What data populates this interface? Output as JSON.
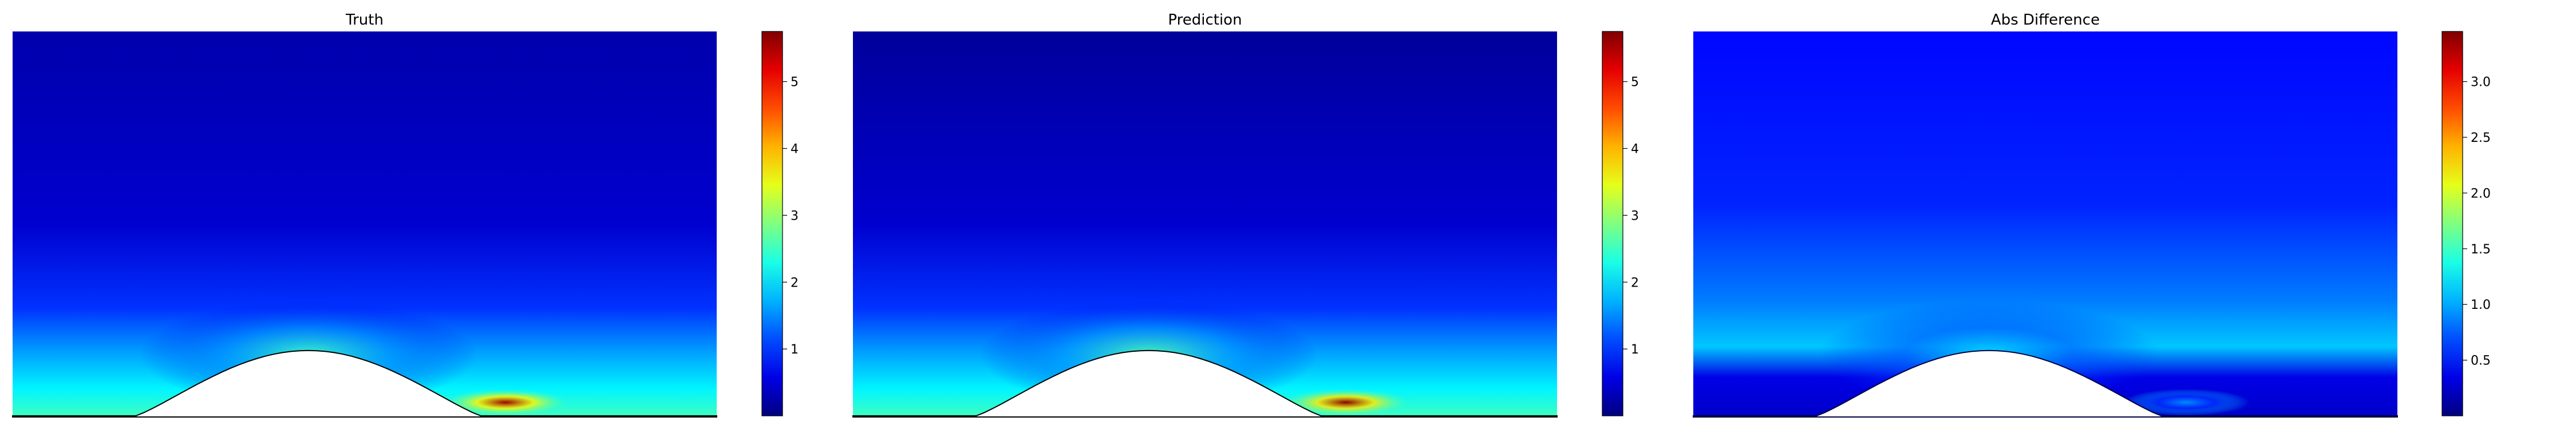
{
  "chart_data": [
    {
      "type": "heatmap",
      "title": "Truth",
      "colormap": "jet",
      "colorbar": {
        "vmin": 0,
        "vmax": 5.75,
        "ticks": [
          1,
          2,
          3,
          4,
          5
        ],
        "tick_labels": [
          "1",
          "2",
          "3",
          "4",
          "5"
        ]
      },
      "field_features": {
        "wake_peak": 5.6,
        "wall_layer": 2.5,
        "freestream": 0.1
      }
    },
    {
      "type": "heatmap",
      "title": "Prediction",
      "colormap": "jet",
      "colorbar": {
        "vmin": 0,
        "vmax": 5.75,
        "ticks": [
          1,
          2,
          3,
          4,
          5
        ],
        "tick_labels": [
          "1",
          "2",
          "3",
          "4",
          "5"
        ]
      },
      "field_features": {
        "wake_peak": 5.7,
        "wall_layer": 2.6,
        "freestream": 0.0
      }
    },
    {
      "type": "heatmap",
      "title": "Abs Difference",
      "colormap": "jet",
      "colorbar": {
        "vmin": 0,
        "vmax": 3.45,
        "ticks": [
          0.5,
          1.0,
          1.5,
          2.0,
          2.5,
          3.0
        ],
        "tick_labels": [
          "0.5",
          "1.0",
          "1.5",
          "2.0",
          "2.5",
          "3.0"
        ]
      },
      "field_features": {
        "wake_peak": 0.9,
        "wall_layer": 1.2,
        "freestream": 0.3
      }
    }
  ]
}
